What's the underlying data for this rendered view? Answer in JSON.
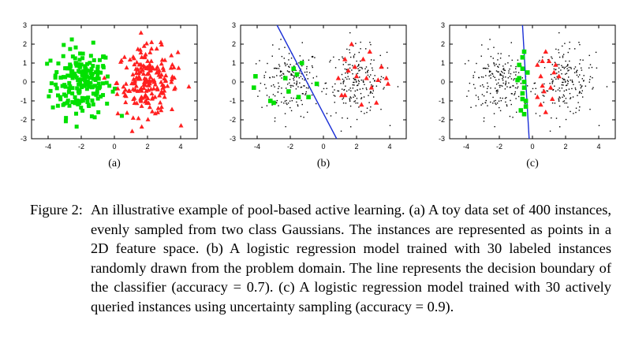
{
  "figure": {
    "caption_label": "Figure 2:",
    "caption_text": "An illustrative example of pool-based active learning. (a) A toy data set of 400 instances, evenly sampled from two class Gaussians. The instances are represented as points in a 2D feature space. (b) A logistic regression model trained with 30 labeled instances randomly drawn from the problem domain. The line represents the decision boundary of the classifier (accuracy = 0.7). (c) A logistic regression model trained with 30 actively queried instances using uncertainty sampling (accuracy = 0.9)."
  },
  "colors": {
    "class0": "#00e000",
    "class1": "#ff2020",
    "unlabeled": "#000000",
    "boundary": "#1a2fd6"
  },
  "chart_data": [
    {
      "type": "scatter",
      "panel_label": "(a)",
      "xlim": [
        -5,
        5
      ],
      "ylim": [
        -3,
        3
      ],
      "xticks": [
        -4,
        -2,
        0,
        2,
        4
      ],
      "yticks": [
        -3,
        -2,
        -1,
        0,
        1,
        2,
        3
      ],
      "grid": false,
      "n_points": 400,
      "class_centers": {
        "green": [
          -2,
          0
        ],
        "red": [
          2,
          0
        ]
      },
      "class_std": 0.9,
      "labeled_all": true
    },
    {
      "type": "scatter",
      "panel_label": "(b)",
      "xlim": [
        -5,
        5
      ],
      "ylim": [
        -3,
        3
      ],
      "xticks": [
        -4,
        -2,
        0,
        2,
        4
      ],
      "yticks": [
        -3,
        -2,
        -1,
        0,
        1,
        2,
        3
      ],
      "grid": false,
      "labeled_green": [
        [
          -4.1,
          0.3
        ],
        [
          -4.2,
          -0.3
        ],
        [
          -3.2,
          -1.0
        ],
        [
          -3.0,
          -1.1
        ],
        [
          -2.3,
          0.2
        ],
        [
          -1.8,
          0.7
        ],
        [
          -1.6,
          0.4
        ],
        [
          -1.5,
          -0.8
        ],
        [
          -0.9,
          -0.8
        ],
        [
          -0.4,
          -0.1
        ],
        [
          -2.1,
          -0.5
        ],
        [
          -1.3,
          1.0
        ]
      ],
      "labeled_red": [
        [
          1.1,
          -0.7
        ],
        [
          1.3,
          -0.7
        ],
        [
          1.5,
          0.6
        ],
        [
          1.9,
          0.8
        ],
        [
          2.4,
          1.2
        ],
        [
          1.7,
          2.0
        ],
        [
          2.6,
          0.2
        ],
        [
          3.3,
          0.1
        ],
        [
          3.8,
          0.2
        ],
        [
          2.3,
          -1.2
        ],
        [
          3.2,
          -1.1
        ],
        [
          2.8,
          1.6
        ],
        [
          2.0,
          0.3
        ],
        [
          3.5,
          0.8
        ],
        [
          0.9,
          0.2
        ],
        [
          1.3,
          1.2
        ],
        [
          2.9,
          -0.3
        ],
        [
          3.9,
          -0.1
        ]
      ],
      "boundary": [
        [
          -2.8,
          3.0
        ],
        [
          0.8,
          -3.0
        ]
      ],
      "accuracy": 0.7
    },
    {
      "type": "scatter",
      "panel_label": "(c)",
      "xlim": [
        -5,
        5
      ],
      "ylim": [
        -3,
        3
      ],
      "xticks": [
        -4,
        -2,
        0,
        2,
        4
      ],
      "yticks": [
        -3,
        -2,
        -1,
        0,
        1,
        2,
        3
      ],
      "grid": false,
      "labeled_green": [
        [
          -0.5,
          1.6
        ],
        [
          -0.6,
          1.3
        ],
        [
          -0.6,
          0.7
        ],
        [
          -0.8,
          0.2
        ],
        [
          -0.5,
          -0.3
        ],
        [
          -0.6,
          -0.6
        ],
        [
          -0.4,
          -1.0
        ],
        [
          -0.7,
          -1.5
        ],
        [
          -0.5,
          -1.7
        ],
        [
          -0.9,
          0.1
        ],
        [
          -0.3,
          0.5
        ],
        [
          -0.4,
          -1.3
        ],
        [
          -0.8,
          0.9
        ],
        [
          -0.5,
          0.0
        ],
        [
          -0.6,
          -0.9
        ]
      ],
      "labeled_red": [
        [
          0.8,
          1.6
        ],
        [
          0.6,
          1.1
        ],
        [
          0.3,
          0.9
        ],
        [
          0.5,
          0.3
        ],
        [
          0.6,
          -0.2
        ],
        [
          0.7,
          -0.5
        ],
        [
          1.1,
          -0.3
        ],
        [
          1.3,
          0.5
        ],
        [
          0.5,
          -1.2
        ],
        [
          1.0,
          1.1
        ],
        [
          0.8,
          -1.6
        ],
        [
          1.6,
          0.3
        ],
        [
          1.2,
          -0.9
        ],
        [
          1.4,
          0.9
        ],
        [
          0.3,
          -0.8
        ]
      ],
      "boundary": [
        [
          -0.6,
          3.0
        ],
        [
          -0.2,
          -3.0
        ]
      ],
      "accuracy": 0.9
    }
  ]
}
